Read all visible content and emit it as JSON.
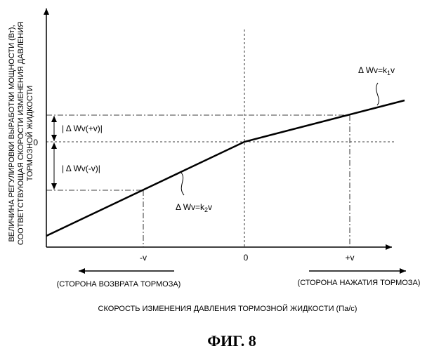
{
  "figure": {
    "caption": "ФИГ. 8",
    "y_axis_title_lines": [
      "ВЕЛИЧИНА РЕГУЛИРОВКИ ВЫРАБОТКИ МОЩНОСТИ (Вт),",
      "СООТВЕТСТВУЮЩАЯ СКОРОСТИ ИЗМЕНЕНИЯ ДАВЛЕНИЯ",
      "ТОРМОЗНОЙ ЖИДКОСТИ"
    ],
    "x_axis_title": "СКОРОСТЬ ИЗМЕНЕНИЯ ДАВЛЕНИЯ ТОРМОЗНОЙ ЖИДКОСТИ (Па/с)",
    "y_zero_label": "0",
    "x_ticks": {
      "neg": "-v",
      "zero": "0",
      "pos": "+v"
    },
    "arrow_left_label": "(СТОРОНА ВОЗВРАТА ТОРМОЗА)",
    "arrow_right_label": "(СТОРОНА НАЖАТИЯ ТОРМОЗА)",
    "delta_pos_label": "| Δ Wv(+v)|",
    "delta_neg_label": "| Δ Wv(-v)|",
    "line_upper": {
      "prefix": "Δ Wv=k",
      "sub": "1",
      "suffix": "v"
    },
    "line_lower": {
      "prefix": "Δ Wv=k",
      "sub": "2",
      "suffix": "v"
    }
  }
}
